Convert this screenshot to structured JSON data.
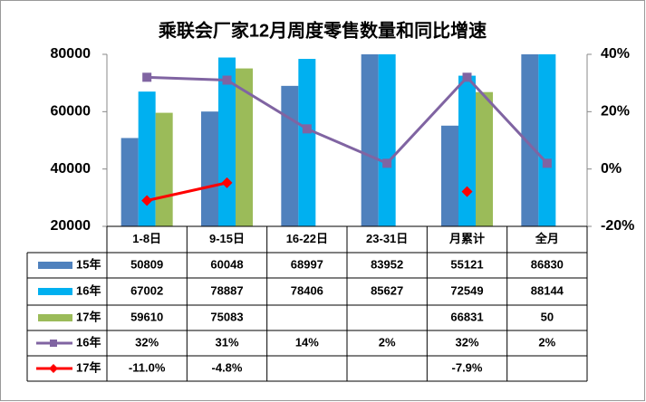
{
  "chart_data": {
    "type": "bar",
    "title": "乘联会厂家12月周度零售数量和同比增速",
    "categories": [
      "1-8日",
      "9-15日",
      "16-22日",
      "23-31日",
      "月累计",
      "全月"
    ],
    "series": [
      {
        "name": "15年",
        "color": "#4f81bd",
        "values": [
          50809,
          60048,
          68997,
          83952,
          55121,
          86830
        ]
      },
      {
        "name": "16年",
        "color": "#00b0f0",
        "values": [
          67002,
          78887,
          78406,
          85627,
          72549,
          88144
        ]
      },
      {
        "name": "17年",
        "color": "#9bbb59",
        "values": [
          59610,
          75083,
          null,
          null,
          66831,
          50
        ]
      },
      {
        "name": "16年",
        "type": "line",
        "axis": "y2",
        "color": "#8064a2",
        "values": [
          32,
          31,
          14,
          2,
          32,
          2
        ],
        "value_labels": [
          "32%",
          "31%",
          "14%",
          "2%",
          "32%",
          "2%"
        ]
      },
      {
        "name": "17年",
        "type": "line",
        "axis": "y2",
        "color": "#ff0000",
        "values": [
          -11.0,
          -4.8,
          null,
          null,
          -7.9,
          null
        ],
        "value_labels": [
          "-11.0%",
          "-4.8%",
          null,
          null,
          "-7.9%",
          null
        ]
      }
    ],
    "ylim": [
      20000,
      80000
    ],
    "yticks": [
      20000,
      40000,
      60000,
      80000
    ],
    "y2lim": [
      -20,
      40
    ],
    "y2ticks": [
      {
        "value": -20,
        "label": "-20%"
      },
      {
        "value": 0,
        "label": "0%"
      },
      {
        "value": 20,
        "label": "20%"
      },
      {
        "value": 40,
        "label": "40%"
      }
    ]
  }
}
